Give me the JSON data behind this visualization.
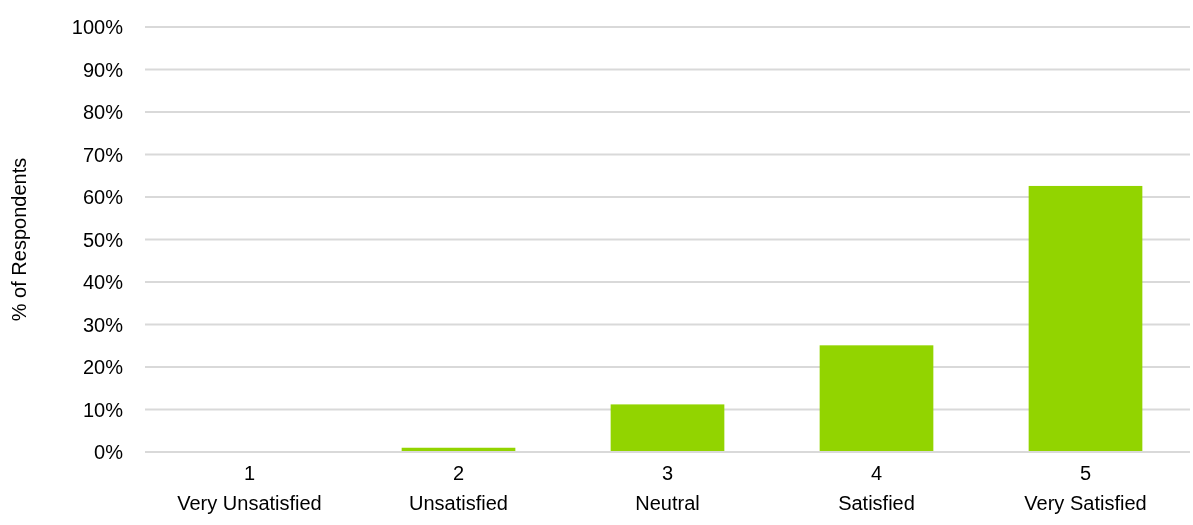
{
  "chart_data": {
    "type": "bar",
    "ylabel": "% of Respondents",
    "categories": [
      "1\nVery Unsatisfied",
      "2\nUnsatisfied",
      "3\nNeutral",
      "4\nSatisfied",
      "5\nVery Satisfied"
    ],
    "values": [
      0,
      1.0,
      11.2,
      25.1,
      62.6
    ],
    "color": "#92d400",
    "ylim": [
      0,
      100
    ],
    "yticks": [
      {
        "value": 0,
        "label": "0%"
      },
      {
        "value": 10,
        "label": "10%"
      },
      {
        "value": 20,
        "label": "20%"
      },
      {
        "value": 30,
        "label": "30%"
      },
      {
        "value": 40,
        "label": "40%"
      },
      {
        "value": 50,
        "label": "50%"
      },
      {
        "value": 60,
        "label": "60%"
      },
      {
        "value": 70,
        "label": "70%"
      },
      {
        "value": 80,
        "label": "80%"
      },
      {
        "value": 90,
        "label": "90%"
      },
      {
        "value": 100,
        "label": "100%"
      }
    ],
    "grid": "y"
  }
}
